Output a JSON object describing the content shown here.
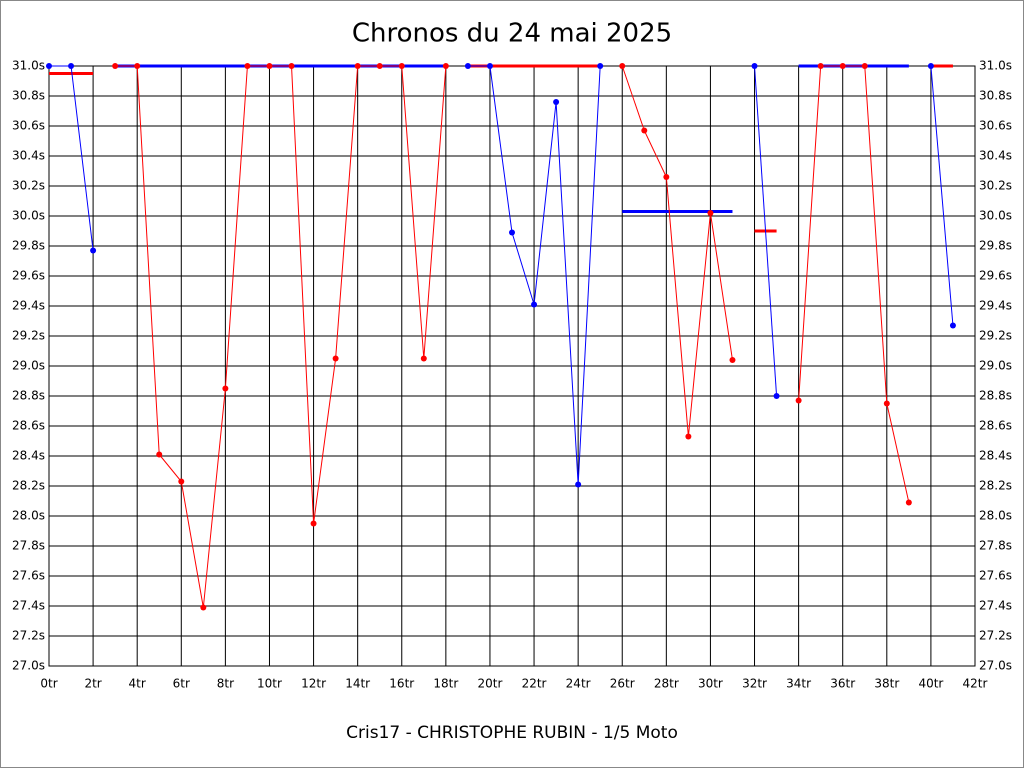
{
  "chart_data": {
    "type": "line",
    "title": "Chronos du 24 mai 2025",
    "xlabel": "Cris17 - CHRISTOPHE RUBIN - 1/5 Moto",
    "x": [
      0,
      1,
      2,
      3,
      4,
      5,
      6,
      7,
      8,
      9,
      10,
      11,
      12,
      13,
      14,
      15,
      16,
      17,
      18,
      19,
      20,
      21,
      22,
      23,
      24,
      25,
      26,
      27,
      28,
      29,
      30,
      31,
      32,
      33,
      34,
      35,
      36,
      37,
      38,
      39,
      40,
      41
    ],
    "series": [
      {
        "color": "#0000ff",
        "values": [
          31.0,
          31.0,
          29.77,
          null,
          null,
          null,
          null,
          null,
          null,
          null,
          null,
          null,
          null,
          null,
          null,
          null,
          null,
          null,
          null,
          31.0,
          31.0,
          29.89,
          29.41,
          30.76,
          28.21,
          31.0,
          null,
          null,
          null,
          null,
          null,
          null,
          31.0,
          28.8,
          null,
          null,
          null,
          null,
          null,
          null,
          31.0,
          29.27
        ]
      },
      {
        "color": "#ff0000",
        "values": [
          null,
          null,
          null,
          31.0,
          31.0,
          28.41,
          28.23,
          27.39,
          28.85,
          31.0,
          31.0,
          31.0,
          27.95,
          29.05,
          31.0,
          31.0,
          31.0,
          29.05,
          31.0,
          null,
          null,
          null,
          null,
          null,
          null,
          null,
          31.0,
          30.57,
          30.26,
          28.53,
          30.02,
          29.04,
          null,
          null,
          28.77,
          31.0,
          31.0,
          31.0,
          28.75,
          28.09,
          null,
          null
        ]
      }
    ],
    "averages": [
      {
        "start": 0,
        "end": 2,
        "value": 30.95,
        "color": "#ff0000"
      },
      {
        "start": 3,
        "end": 18,
        "value": 31.0,
        "color": "#0000ff"
      },
      {
        "start": 19,
        "end": 25,
        "value": 31.0,
        "color": "#ff0000"
      },
      {
        "start": 26,
        "end": 31,
        "value": 30.03,
        "color": "#0000ff"
      },
      {
        "start": 32,
        "end": 33,
        "value": 29.9,
        "color": "#ff0000"
      },
      {
        "start": 34,
        "end": 39,
        "value": 31.0,
        "color": "#0000ff"
      },
      {
        "start": 40,
        "end": 41,
        "value": 31.0,
        "color": "#ff0000"
      }
    ],
    "xlim": [
      0,
      42
    ],
    "ylim": [
      27.0,
      31.0
    ],
    "xticks": [
      {
        "value": 0,
        "label": "0tr"
      },
      {
        "value": 2,
        "label": "2tr"
      },
      {
        "value": 4,
        "label": "4tr"
      },
      {
        "value": 6,
        "label": "6tr"
      },
      {
        "value": 8,
        "label": "8tr"
      },
      {
        "value": 10,
        "label": "10tr"
      },
      {
        "value": 12,
        "label": "12tr"
      },
      {
        "value": 14,
        "label": "14tr"
      },
      {
        "value": 16,
        "label": "16tr"
      },
      {
        "value": 18,
        "label": "18tr"
      },
      {
        "value": 20,
        "label": "20tr"
      },
      {
        "value": 22,
        "label": "22tr"
      },
      {
        "value": 24,
        "label": "24tr"
      },
      {
        "value": 26,
        "label": "26tr"
      },
      {
        "value": 28,
        "label": "28tr"
      },
      {
        "value": 30,
        "label": "30tr"
      },
      {
        "value": 32,
        "label": "32tr"
      },
      {
        "value": 34,
        "label": "34tr"
      },
      {
        "value": 36,
        "label": "36tr"
      },
      {
        "value": 38,
        "label": "38tr"
      },
      {
        "value": 40,
        "label": "40tr"
      },
      {
        "value": 42,
        "label": "42tr"
      }
    ],
    "yticks": [
      {
        "value": 27.0,
        "label": "27.0s"
      },
      {
        "value": 27.2,
        "label": "27.2s"
      },
      {
        "value": 27.4,
        "label": "27.4s"
      },
      {
        "value": 27.6,
        "label": "27.6s"
      },
      {
        "value": 27.8,
        "label": "27.8s"
      },
      {
        "value": 28.0,
        "label": "28.0s"
      },
      {
        "value": 28.2,
        "label": "28.2s"
      },
      {
        "value": 28.4,
        "label": "28.4s"
      },
      {
        "value": 28.6,
        "label": "28.6s"
      },
      {
        "value": 28.8,
        "label": "28.8s"
      },
      {
        "value": 29.0,
        "label": "29.0s"
      },
      {
        "value": 29.2,
        "label": "29.2s"
      },
      {
        "value": 29.4,
        "label": "29.4s"
      },
      {
        "value": 29.6,
        "label": "29.6s"
      },
      {
        "value": 29.8,
        "label": "29.8s"
      },
      {
        "value": 30.0,
        "label": "30.0s"
      },
      {
        "value": 30.2,
        "label": "30.2s"
      },
      {
        "value": 30.4,
        "label": "30.4s"
      },
      {
        "value": 30.6,
        "label": "30.6s"
      },
      {
        "value": 30.8,
        "label": "30.8s"
      },
      {
        "value": 31.0,
        "label": "31.0s"
      }
    ],
    "grid": true
  }
}
